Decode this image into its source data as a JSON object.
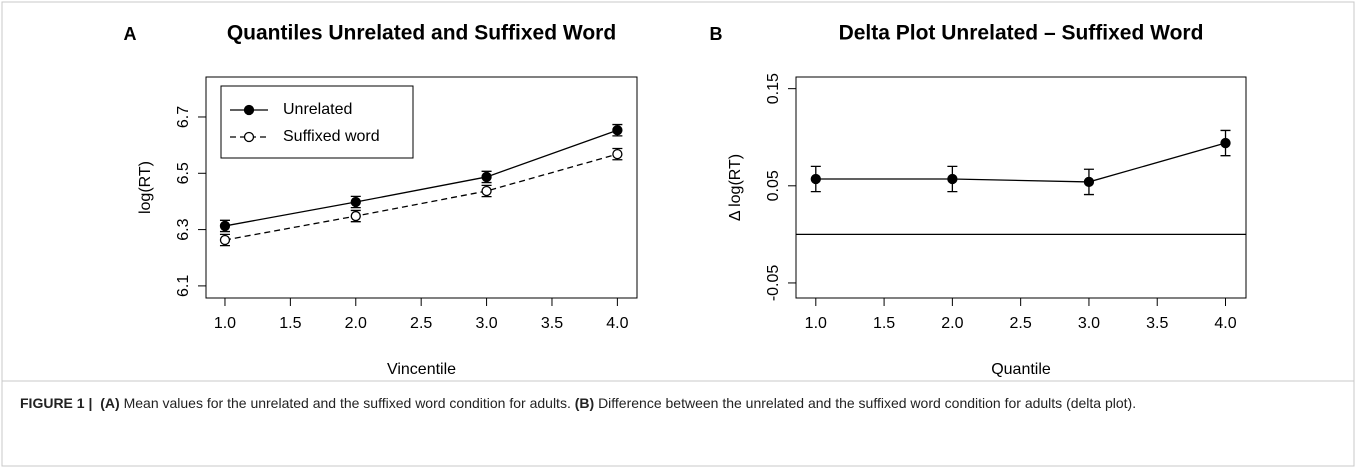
{
  "chart_data": [
    {
      "type": "line",
      "panel": "A",
      "title": "Quantiles Unrelated and Suffixed Word",
      "xlabel": "Vincentile",
      "ylabel": "log(RT)",
      "x": [
        1,
        2,
        3,
        4
      ],
      "xlim": [
        0.855,
        4.15
      ],
      "xticks": [
        {
          "value": 1,
          "label": "1.0"
        },
        {
          "value": 1.5,
          "label": "1.5"
        },
        {
          "value": 2,
          "label": "2.0"
        },
        {
          "value": 2.5,
          "label": "2.5"
        },
        {
          "value": 3,
          "label": "3.0"
        },
        {
          "value": 3.5,
          "label": "3.5"
        },
        {
          "value": 4,
          "label": "4.0"
        }
      ],
      "ylim": [
        6.057,
        6.842
      ],
      "yticks": [
        6.1,
        6.3,
        6.5,
        6.7
      ],
      "legend": "top-left",
      "series": [
        {
          "name": "Unrelated",
          "color": "#000000",
          "linestyle": "solid",
          "marker": "filled",
          "values": [
            6.313,
            6.398,
            6.487,
            6.653
          ],
          "errors": [
            0.02,
            0.02,
            0.02,
            0.02
          ]
        },
        {
          "name": "Suffixed word",
          "color": "#000000",
          "linestyle": "dashed",
          "marker": "open",
          "values": [
            6.263,
            6.348,
            6.437,
            6.568
          ],
          "errors": [
            0.02,
            0.02,
            0.02,
            0.02
          ]
        }
      ]
    },
    {
      "type": "line",
      "panel": "B",
      "title": "Delta Plot Unrelated – Suffixed Word",
      "xlabel": "Quantile",
      "ylabel": "Δ log(RT)",
      "x": [
        1,
        2,
        3,
        4
      ],
      "xlim": [
        0.855,
        4.15
      ],
      "xticks": [
        {
          "value": 1,
          "label": "1.0"
        },
        {
          "value": 1.5,
          "label": "1.5"
        },
        {
          "value": 2,
          "label": "2.0"
        },
        {
          "value": 2.5,
          "label": "2.5"
        },
        {
          "value": 3,
          "label": "3.0"
        },
        {
          "value": 3.5,
          "label": "3.5"
        },
        {
          "value": 4,
          "label": "4.0"
        }
      ],
      "ylim": [
        -0.0655,
        0.162
      ],
      "yticks": [
        -0.05,
        0.05,
        0.15
      ],
      "hline": 0,
      "series": [
        {
          "color": "#000000",
          "linestyle": "solid",
          "marker": "filled",
          "values": [
            0.057,
            0.057,
            0.054,
            0.094
          ],
          "errors": [
            0.013,
            0.013,
            0.013,
            0.013
          ]
        }
      ]
    }
  ],
  "caption": {
    "figure": "FIGURE 1 |",
    "items": [
      {
        "label": "(A)",
        "text": "Mean values for the unrelated and the suffixed word condition for adults."
      },
      {
        "label": "(B)",
        "text": "Difference between the unrelated and the suffixed word condition for adults (delta plot)."
      }
    ]
  }
}
